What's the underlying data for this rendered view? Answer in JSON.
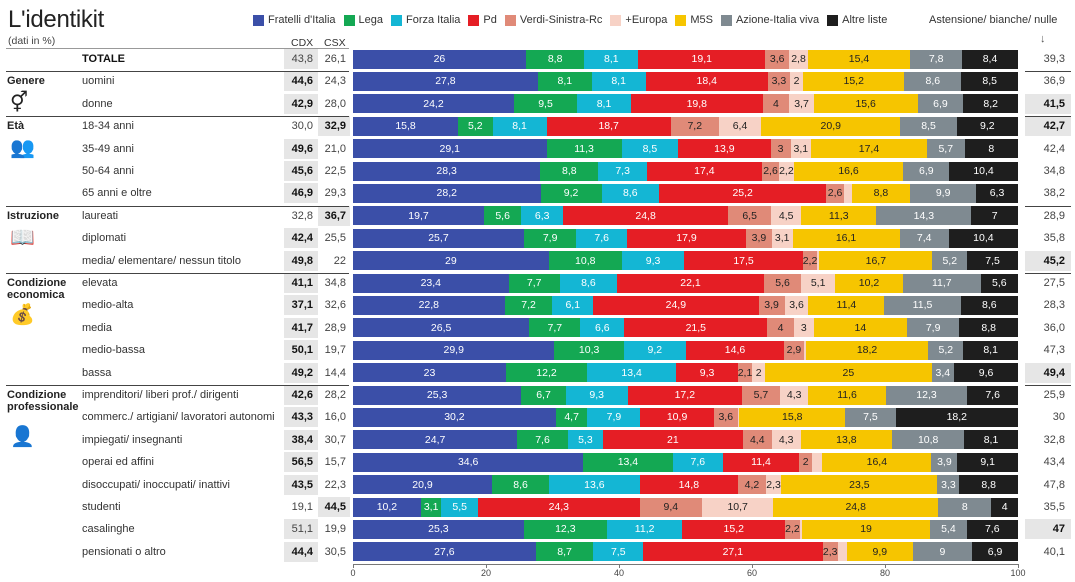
{
  "title": "L'identikit",
  "subtitle": "(dati in %)",
  "columns": {
    "cdx": "CDX",
    "csx": "CSX"
  },
  "abstention_header": "Astensione/ bianche/ nulle",
  "abstention_arrow": "↓",
  "legend": [
    {
      "name": "Fratelli d'Italia",
      "color": "#3b4fa8"
    },
    {
      "name": "Lega",
      "color": "#14a853"
    },
    {
      "name": "Forza Italia",
      "color": "#14b6d4"
    },
    {
      "name": "Pd",
      "color": "#e51e25"
    },
    {
      "name": "Verdi-Sinistra-Rc",
      "color": "#e08a78"
    },
    {
      "name": "+Europa",
      "color": "#f7d2c6"
    },
    {
      "name": "M5S",
      "color": "#f6c500"
    },
    {
      "name": "Azione-Italia viva",
      "color": "#7f8a91"
    },
    {
      "name": "Altre liste",
      "color": "#1e1e1e"
    }
  ],
  "groups": [
    {
      "label": "Genere",
      "icon_name": "gender-icon",
      "icon": "⚥"
    },
    {
      "label": "Età",
      "icon_name": "people-icon",
      "icon": "👥"
    },
    {
      "label": "Istruzione",
      "icon_name": "book-icon",
      "icon": "📖"
    },
    {
      "label": "Condizione economica",
      "icon_name": "money-bag-icon",
      "icon": "💰"
    },
    {
      "label": "Condizione professionale",
      "icon_name": "worker-icon",
      "icon": "👤"
    }
  ],
  "chart_data": {
    "type": "bar",
    "stacked": true,
    "orientation": "horizontal",
    "xlim": [
      0,
      100
    ],
    "xticks": [
      0,
      20,
      40,
      60,
      80,
      100
    ],
    "series_names": [
      "Fratelli d'Italia",
      "Lega",
      "Forza Italia",
      "Pd",
      "Verdi-Sinistra-Rc",
      "+Europa",
      "M5S",
      "Azione-Italia viva",
      "Altre liste"
    ],
    "rows": [
      {
        "label": "TOTALE",
        "group": null,
        "cdx": "43,8",
        "csx": "26,1",
        "bold": "",
        "values": [
          26,
          8.8,
          8.1,
          19.1,
          3.6,
          2.8,
          15.4,
          7.8,
          8.4
        ],
        "labels": [
          "26",
          "8,8",
          "8,1",
          "19,1",
          "3,6",
          "2,8",
          "15,4",
          "7,8",
          "8,4"
        ],
        "abstention": "39,3",
        "abst_bold": false
      },
      {
        "label": "uomini",
        "group": 0,
        "cdx": "44,6",
        "csx": "24,3",
        "bold": "cdx",
        "values": [
          27.8,
          8.1,
          8.1,
          18.4,
          3.3,
          2,
          15.2,
          8.6,
          8.5
        ],
        "labels": [
          "27,8",
          "8,1",
          "8,1",
          "18,4",
          "3,3",
          "2",
          "15,2",
          "8,6",
          "8,5"
        ],
        "abstention": "36,9",
        "abst_bold": false
      },
      {
        "label": "donne",
        "group": 0,
        "cdx": "42,9",
        "csx": "28,0",
        "bold": "cdx",
        "values": [
          24.2,
          9.5,
          8.1,
          19.8,
          4,
          3.7,
          15.6,
          6.9,
          8.2
        ],
        "labels": [
          "24,2",
          "9,5",
          "8,1",
          "19,8",
          "4",
          "3,7",
          "15,6",
          "6,9",
          "8,2"
        ],
        "abstention": "41,5",
        "abst_bold": true
      },
      {
        "label": "18-34 anni",
        "group": 1,
        "cdx": "30,0",
        "csx": "32,9",
        "bold": "csx",
        "values": [
          15.8,
          5.2,
          8.1,
          18.7,
          7.2,
          6.4,
          20.9,
          8.5,
          9.2
        ],
        "labels": [
          "15,8",
          "5,2",
          "8,1",
          "18,7",
          "7,2",
          "6,4",
          "20,9",
          "8,5",
          "9,2"
        ],
        "abstention": "42,7",
        "abst_bold": true
      },
      {
        "label": "35-49 anni",
        "group": 1,
        "cdx": "49,6",
        "csx": "21,0",
        "bold": "cdx",
        "values": [
          29.1,
          11.3,
          8.5,
          13.9,
          3,
          3.1,
          17.4,
          5.7,
          8
        ],
        "labels": [
          "29,1",
          "11,3",
          "8,5",
          "13,9",
          "3",
          "3,1",
          "17,4",
          "5,7",
          "8"
        ],
        "abstention": "42,4",
        "abst_bold": false
      },
      {
        "label": "50-64 anni",
        "group": 1,
        "cdx": "45,6",
        "csx": "22,5",
        "bold": "cdx",
        "values": [
          28.3,
          8.8,
          7.3,
          17.4,
          2.6,
          2.2,
          16.6,
          6.9,
          10.4
        ],
        "labels": [
          "28,3",
          "8,8",
          "7,3",
          "17,4",
          "2,6",
          "2,2",
          "16,6",
          "6,9",
          "10,4"
        ],
        "abstention": "34,8",
        "abst_bold": false
      },
      {
        "label": "65 anni e oltre",
        "group": 1,
        "cdx": "46,9",
        "csx": "29,3",
        "bold": "cdx",
        "values": [
          28.2,
          9.2,
          8.6,
          25.2,
          2.6,
          1.2,
          8.8,
          9.9,
          6.3
        ],
        "labels": [
          "28,2",
          "9,2",
          "8,6",
          "25,2",
          "2,6",
          "",
          "8,8",
          "9,9",
          "6,3"
        ],
        "abstention": "38,2",
        "abst_bold": false
      },
      {
        "label": "laureati",
        "group": 2,
        "cdx": "32,8",
        "csx": "36,7",
        "bold": "csx",
        "values": [
          19.7,
          5.6,
          6.3,
          24.8,
          6.5,
          4.5,
          11.3,
          14.3,
          7
        ],
        "labels": [
          "19,7",
          "5,6",
          "6,3",
          "24,8",
          "6,5",
          "4,5",
          "11,3",
          "14,3",
          "7"
        ],
        "abstention": "28,9",
        "abst_bold": false
      },
      {
        "label": "diplomati",
        "group": 2,
        "cdx": "42,4",
        "csx": "25,5",
        "bold": "cdx",
        "values": [
          25.7,
          7.9,
          7.6,
          17.9,
          3.9,
          3.1,
          16.1,
          7.4,
          10.4
        ],
        "labels": [
          "25,7",
          "7,9",
          "7,6",
          "17,9",
          "3,9",
          "3,1",
          "16,1",
          "7,4",
          "10,4"
        ],
        "abstention": "35,8",
        "abst_bold": false
      },
      {
        "label": "media/ elementare/ nessun titolo",
        "group": 2,
        "cdx": "49,8",
        "csx": "22",
        "bold": "cdx",
        "values": [
          29,
          10.8,
          9.3,
          17.5,
          2.2,
          0.3,
          16.7,
          5.2,
          7.5
        ],
        "labels": [
          "29",
          "10,8",
          "9,3",
          "17,5",
          "2,2",
          "",
          "16,7",
          "5,2",
          "7,5"
        ],
        "abstention": "45,2",
        "abst_bold": true
      },
      {
        "label": "elevata",
        "group": 3,
        "cdx": "41,1",
        "csx": "34,8",
        "bold": "cdx",
        "values": [
          23.4,
          7.7,
          8.6,
          22.1,
          5.6,
          5.1,
          10.2,
          11.7,
          5.6
        ],
        "labels": [
          "23,4",
          "7,7",
          "8,6",
          "22,1",
          "5,6",
          "5,1",
          "10,2",
          "11,7",
          "5,6"
        ],
        "abstention": "27,5",
        "abst_bold": false
      },
      {
        "label": "medio-alta",
        "group": 3,
        "cdx": "37,1",
        "csx": "32,6",
        "bold": "cdx",
        "values": [
          22.8,
          7.2,
          6.1,
          24.9,
          3.9,
          3.6,
          11.4,
          11.5,
          8.6
        ],
        "labels": [
          "22,8",
          "7,2",
          "6,1",
          "24,9",
          "3,9",
          "3,6",
          "11,4",
          "11,5",
          "8,6"
        ],
        "abstention": "28,3",
        "abst_bold": false
      },
      {
        "label": "media",
        "group": 3,
        "cdx": "41,7",
        "csx": "28,9",
        "bold": "cdx",
        "values": [
          26.5,
          7.7,
          6.6,
          21.5,
          4,
          3,
          14,
          7.9,
          8.8
        ],
        "labels": [
          "26,5",
          "7,7",
          "6,6",
          "21,5",
          "4",
          "3",
          "14",
          "7,9",
          "8,8"
        ],
        "abstention": "36,0",
        "abst_bold": false
      },
      {
        "label": "medio-bassa",
        "group": 3,
        "cdx": "50,1",
        "csx": "19,7",
        "bold": "cdx",
        "values": [
          29.9,
          10.3,
          9.2,
          14.6,
          2.9,
          0.3,
          18.2,
          5.2,
          8.1
        ],
        "labels": [
          "29,9",
          "10,3",
          "9,2",
          "14,6",
          "2,9",
          "",
          "18,2",
          "5,2",
          "8,1"
        ],
        "abstention": "47,3",
        "abst_bold": false
      },
      {
        "label": "bassa",
        "group": 3,
        "cdx": "49,2",
        "csx": "14,4",
        "bold": "cdx",
        "values": [
          23,
          12.2,
          13.4,
          9.3,
          2.1,
          2,
          25,
          3.4,
          9.6
        ],
        "labels": [
          "23",
          "12,2",
          "13,4",
          "9,3",
          "2,1",
          "2",
          "25",
          "3,4",
          "9,6"
        ],
        "abstention": "49,4",
        "abst_bold": true
      },
      {
        "label": "imprenditori/ liberi prof./ dirigenti",
        "group": 4,
        "cdx": "42,6",
        "csx": "28,2",
        "bold": "cdx",
        "values": [
          25.3,
          6.7,
          9.3,
          17.2,
          5.7,
          4.3,
          11.6,
          12.3,
          7.6
        ],
        "labels": [
          "25,3",
          "6,7",
          "9,3",
          "17,2",
          "5,7",
          "4,3",
          "11,6",
          "12,3",
          "7,6"
        ],
        "abstention": "25,9",
        "abst_bold": false
      },
      {
        "label": "commerc./ artigiani/ lavoratori autonomi",
        "group": 4,
        "cdx": "43,3",
        "csx": "16,0",
        "bold": "cdx",
        "values": [
          30.2,
          4.7,
          7.9,
          10.9,
          3.6,
          0.2,
          15.8,
          7.5,
          18.2
        ],
        "labels": [
          "30,2",
          "4,7",
          "7,9",
          "10,9",
          "3,6",
          "",
          "15,8",
          "7,5",
          "18,2"
        ],
        "abstention": "30",
        "abst_bold": false
      },
      {
        "label": "impiegati/ insegnanti",
        "group": 4,
        "cdx": "38,4",
        "csx": "30,7",
        "bold": "cdx",
        "values": [
          24.7,
          7.6,
          5.3,
          21,
          4.4,
          4.3,
          13.8,
          10.8,
          8.1
        ],
        "labels": [
          "24,7",
          "7,6",
          "5,3",
          "21",
          "4,4",
          "4,3",
          "13,8",
          "10,8",
          "8,1"
        ],
        "abstention": "32,8",
        "abst_bold": false
      },
      {
        "label": "operai ed affini",
        "group": 4,
        "cdx": "56,5",
        "csx": "15,7",
        "bold": "cdx",
        "values": [
          34.6,
          13.4,
          7.6,
          11.4,
          2,
          1.5,
          16.4,
          3.9,
          9.1
        ],
        "labels": [
          "34,6",
          "13,4",
          "7,6",
          "11,4",
          "2",
          "",
          "16,4",
          "3,9",
          "9,1"
        ],
        "abstention": "43,4",
        "abst_bold": false
      },
      {
        "label": "disoccupati/ inoccupati/ inattivi",
        "group": 4,
        "cdx": "43,5",
        "csx": "22,3",
        "bold": "cdx",
        "values": [
          20.9,
          8.6,
          13.6,
          14.8,
          4.2,
          2.3,
          23.5,
          3.3,
          8.8
        ],
        "labels": [
          "20,9",
          "8,6",
          "13,6",
          "14,8",
          "4,2",
          "2,3",
          "23,5",
          "3,3",
          "8,8"
        ],
        "abstention": "47,8",
        "abst_bold": false
      },
      {
        "label": "studenti",
        "group": 4,
        "cdx": "19,1",
        "csx": "44,5",
        "bold": "csx",
        "values": [
          10.2,
          3.1,
          5.5,
          24.3,
          9.4,
          10.7,
          24.8,
          8,
          4
        ],
        "labels": [
          "10,2",
          "3,1",
          "5,5",
          "24,3",
          "9,4",
          "10,7",
          "24,8",
          "8",
          "4"
        ],
        "abstention": "35,5",
        "abst_bold": false
      },
      {
        "label": "casalinghe",
        "group": 4,
        "cdx": "51,1",
        "csx": "19,9",
        "bold": "",
        "values": [
          25.3,
          12.3,
          11.2,
          15.2,
          2.2,
          0.3,
          19,
          5.4,
          7.6
        ],
        "labels": [
          "25,3",
          "12,3",
          "11,2",
          "15,2",
          "2,2",
          "",
          "19",
          "5,4",
          "7,6"
        ],
        "abstention": "47",
        "abst_bold": true
      },
      {
        "label": "pensionati o altro",
        "group": 4,
        "cdx": "44,4",
        "csx": "30,5",
        "bold": "cdx",
        "values": [
          27.6,
          8.7,
          7.5,
          27.1,
          2.3,
          1.4,
          9.9,
          9,
          6.9
        ],
        "labels": [
          "27,6",
          "8,7",
          "7,5",
          "27,1",
          "2,3",
          "",
          "9,9",
          "9",
          "6,9"
        ],
        "abstention": "40,1",
        "abst_bold": false
      }
    ]
  }
}
